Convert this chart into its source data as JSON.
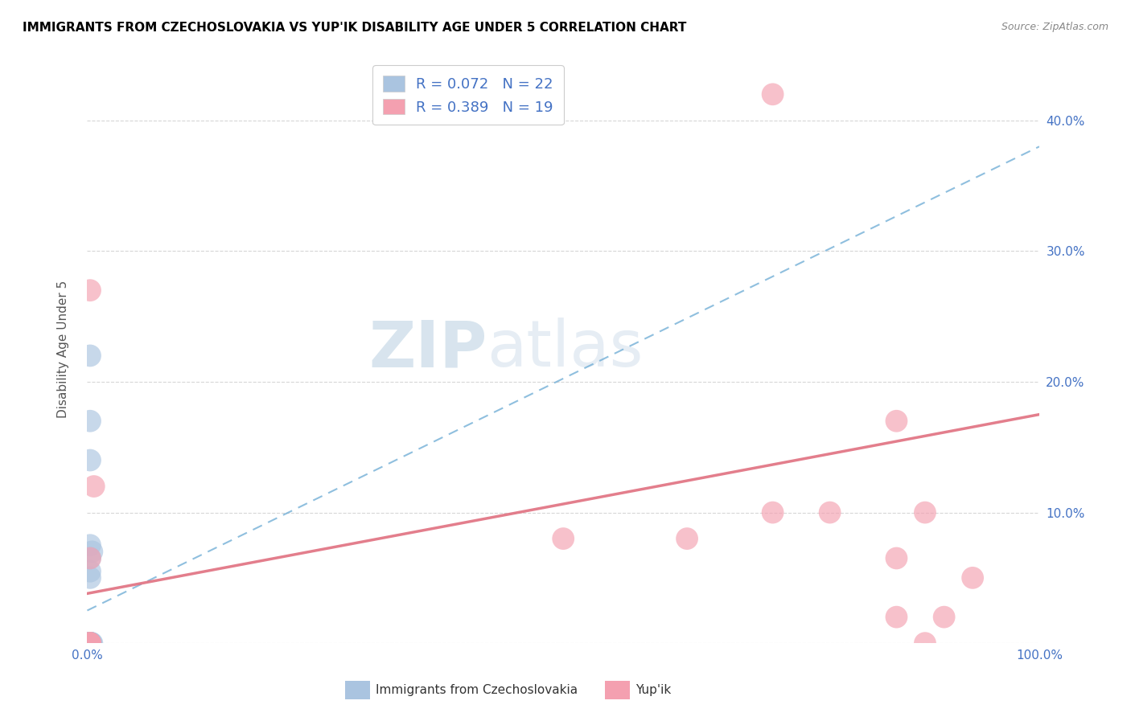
{
  "title": "IMMIGRANTS FROM CZECHOSLOVAKIA VS YUP'IK DISABILITY AGE UNDER 5 CORRELATION CHART",
  "source": "Source: ZipAtlas.com",
  "ylabel": "Disability Age Under 5",
  "legend_blue_R": "R = 0.072",
  "legend_blue_N": "N = 22",
  "legend_pink_R": "R = 0.389",
  "legend_pink_N": "N = 19",
  "legend_label_blue": "Immigrants from Czechoslovakia",
  "legend_label_pink": "Yup'ik",
  "blue_color": "#aac4e0",
  "pink_color": "#f4a0b0",
  "blue_line_color": "#6aaad4",
  "pink_line_color": "#e07080",
  "watermark_color": "#ccdde8",
  "xlim": [
    0.0,
    1.0
  ],
  "ylim": [
    0.0,
    0.45
  ],
  "yticks": [
    0.0,
    0.1,
    0.2,
    0.3,
    0.4
  ],
  "ytick_labels": [
    "",
    "10.0%",
    "20.0%",
    "30.0%",
    "40.0%"
  ],
  "xticks": [
    0.0,
    0.25,
    0.5,
    0.75,
    1.0
  ],
  "xtick_labels": [
    "0.0%",
    "",
    "",
    "",
    "100.0%"
  ],
  "blue_scatter_x": [
    0.003,
    0.003,
    0.005,
    0.003,
    0.004,
    0.003,
    0.004,
    0.003,
    0.003,
    0.003,
    0.003,
    0.003,
    0.003,
    0.003,
    0.003,
    0.003,
    0.005,
    0.003,
    0.003,
    0.003,
    0.003,
    0.003
  ],
  "blue_scatter_y": [
    0.0,
    0.0,
    0.0,
    0.0,
    0.0,
    0.0,
    0.0,
    0.0,
    0.0,
    0.0,
    0.22,
    0.17,
    0.14,
    0.0,
    0.065,
    0.075,
    0.07,
    0.0,
    0.0,
    0.05,
    0.055,
    0.0
  ],
  "pink_scatter_x": [
    0.003,
    0.007,
    0.003,
    0.003,
    0.003,
    0.003,
    0.5,
    0.63,
    0.72,
    0.78,
    0.72,
    0.85,
    0.88,
    0.85,
    0.93,
    0.9,
    0.85,
    0.88,
    0.003
  ],
  "pink_scatter_y": [
    0.065,
    0.12,
    0.0,
    0.0,
    0.0,
    0.0,
    0.08,
    0.08,
    0.1,
    0.1,
    0.42,
    0.17,
    0.1,
    0.065,
    0.05,
    0.02,
    0.02,
    0.0,
    0.27
  ],
  "blue_trendline_x": [
    0.0,
    1.0
  ],
  "blue_trendline_y_start": 0.025,
  "blue_trendline_y_end": 0.38,
  "pink_trendline_x": [
    0.0,
    1.0
  ],
  "pink_trendline_y_start": 0.038,
  "pink_trendline_y_end": 0.175
}
